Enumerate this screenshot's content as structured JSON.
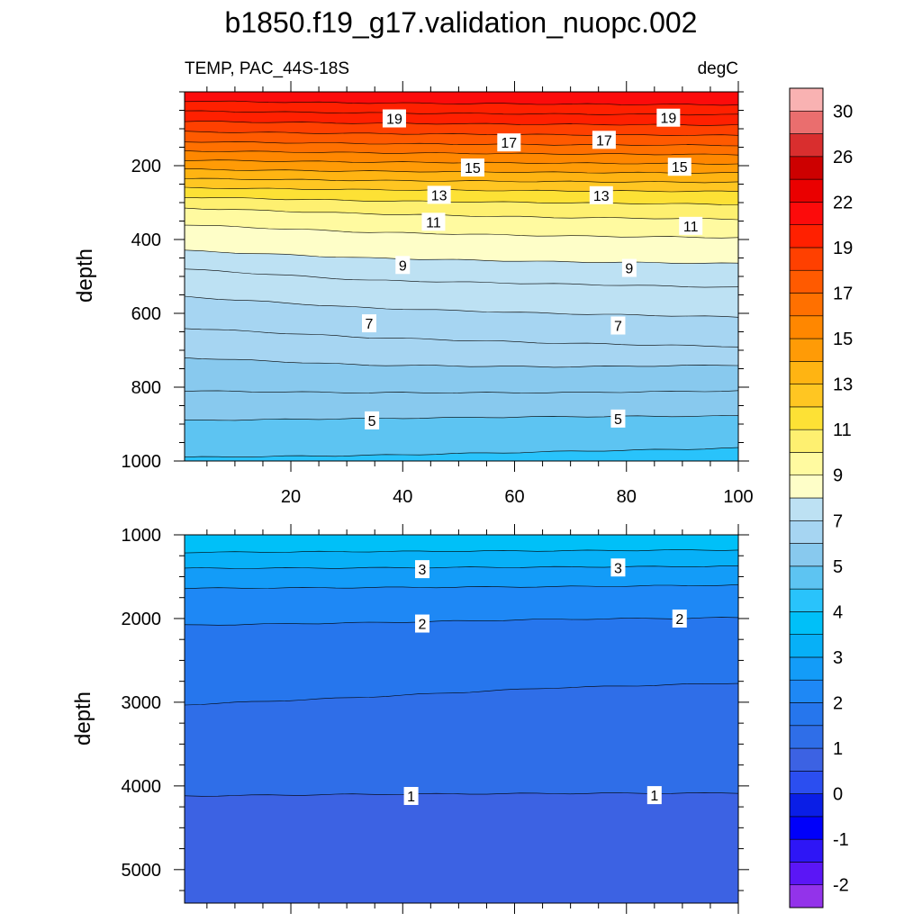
{
  "chart_data": {
    "type": "contour",
    "title": "b1850.f19_g17.validation_nuopc.002",
    "subtitle_left": "TEMP, PAC_44S-18S",
    "subtitle_right": "degC",
    "ylabel": "depth",
    "x_tick_labels": [
      "20",
      "40",
      "60",
      "80",
      "100"
    ],
    "x_ticks": [
      20,
      40,
      60,
      80,
      100
    ],
    "xlim": [
      1,
      100
    ],
    "panels": [
      {
        "name": "upper",
        "ylim": [
          0,
          1000
        ],
        "y_ticks": [
          200,
          400,
          600,
          800,
          1000
        ],
        "y_tick_labels": [
          "200",
          "400",
          "600",
          "800",
          "1000"
        ],
        "contours": [
          {
            "level": 21,
            "depths": [
              25,
              30,
              33,
              35
            ]
          },
          {
            "level": 20,
            "depths": [
              52,
              57,
              60,
              62
            ]
          },
          {
            "level": 19,
            "depths": [
              80,
              85,
              88,
              90
            ]
          },
          {
            "level": 18,
            "depths": [
              108,
              113,
              116,
              118
            ]
          },
          {
            "level": 17,
            "depths": [
              135,
              140,
              143,
              145
            ]
          },
          {
            "level": 16,
            "depths": [
              160,
              165,
              168,
              170
            ]
          },
          {
            "level": 15,
            "depths": [
              185,
              190,
              193,
              195
            ]
          },
          {
            "level": 14,
            "depths": [
              210,
              215,
              218,
              220
            ]
          },
          {
            "level": 13,
            "depths": [
              235,
              240,
              243,
              245
            ]
          },
          {
            "level": 12,
            "depths": [
              260,
              265,
              268,
              270
            ]
          },
          {
            "level": 11,
            "depths": [
              285,
              295,
              300,
              305
            ]
          },
          {
            "level": 10,
            "depths": [
              315,
              330,
              340,
              345
            ]
          },
          {
            "level": 9,
            "depths": [
              360,
              380,
              390,
              395
            ]
          },
          {
            "level": 8,
            "depths": [
              430,
              450,
              460,
              465
            ]
          },
          {
            "level": 7.5,
            "depths": [
              480,
              510,
              520,
              530
            ]
          },
          {
            "level": 7,
            "depths": [
              555,
              585,
              600,
              610
            ]
          },
          {
            "level": 6.5,
            "depths": [
              640,
              665,
              680,
              690
            ]
          },
          {
            "level": 6,
            "depths": [
              720,
              740,
              745,
              740
            ]
          },
          {
            "level": 5.5,
            "depths": [
              810,
              815,
              815,
              810
            ]
          },
          {
            "level": 5,
            "depths": [
              890,
              885,
              880,
              878
            ]
          },
          {
            "level": 4.5,
            "depths": [
              990,
              985,
              975,
              965
            ]
          }
        ],
        "labels": [
          {
            "text": "19",
            "x": 38.5,
            "y": 72
          },
          {
            "text": "19",
            "x": 87.5,
            "y": 70
          },
          {
            "text": "17",
            "x": 59,
            "y": 137
          },
          {
            "text": "17",
            "x": 76,
            "y": 130
          },
          {
            "text": "15",
            "x": 52.5,
            "y": 205
          },
          {
            "text": "15",
            "x": 89.5,
            "y": 203
          },
          {
            "text": "13",
            "x": 46.5,
            "y": 279
          },
          {
            "text": "13",
            "x": 75.5,
            "y": 280
          },
          {
            "text": "11",
            "x": 45.5,
            "y": 352
          },
          {
            "text": "11",
            "x": 91.5,
            "y": 363
          },
          {
            "text": "9",
            "x": 40,
            "y": 469
          },
          {
            "text": "9",
            "x": 80.5,
            "y": 477
          },
          {
            "text": "7",
            "x": 34,
            "y": 627
          },
          {
            "text": "7",
            "x": 78.5,
            "y": 633
          },
          {
            "text": "5",
            "x": 34.5,
            "y": 890
          },
          {
            "text": "5",
            "x": 78.5,
            "y": 885
          }
        ]
      },
      {
        "name": "lower",
        "ylim": [
          1000,
          5400
        ],
        "y_ticks": [
          1000,
          2000,
          3000,
          4000,
          5000
        ],
        "y_tick_labels": [
          "1000",
          "2000",
          "3000",
          "4000",
          "5000"
        ],
        "contours": [
          {
            "level": 3.5,
            "depths": [
              1210,
              1200,
              1190,
              1180
            ]
          },
          {
            "level": 3,
            "depths": [
              1400,
              1395,
              1385,
              1375
            ]
          },
          {
            "level": 2.5,
            "depths": [
              1640,
              1630,
              1620,
              1600
            ]
          },
          {
            "level": 2,
            "depths": [
              2080,
              2050,
              2010,
              1990
            ]
          },
          {
            "level": 1.5,
            "depths": [
              3030,
              2940,
              2830,
              2770
            ]
          },
          {
            "level": 1,
            "depths": [
              4120,
              4100,
              4090,
              4085
            ]
          }
        ],
        "labels": [
          {
            "text": "3",
            "x": 43.5,
            "y": 1410
          },
          {
            "text": "3",
            "x": 78.5,
            "y": 1390
          },
          {
            "text": "2",
            "x": 43.5,
            "y": 2060
          },
          {
            "text": "2",
            "x": 89.5,
            "y": 2000
          },
          {
            "text": "1",
            "x": 41.5,
            "y": 4120
          },
          {
            "text": "1",
            "x": 85,
            "y": 4110
          }
        ]
      }
    ],
    "colorbar": {
      "tick_labels": [
        "-2",
        "-1",
        "0",
        "1",
        "2",
        "3",
        "4",
        "5",
        "7",
        "9",
        "11",
        "13",
        "15",
        "17",
        "19",
        "22",
        "26",
        "30"
      ],
      "colors": [
        "#9333ea",
        "#5b16f6",
        "#2e16f6",
        "#0000fa",
        "#0a1ee6",
        "#2b4ef0",
        "#3c62e3",
        "#2f6ee8",
        "#2676ed",
        "#1e88f5",
        "#139cf8",
        "#07b0f7",
        "#00c0f8",
        "#29c3fb",
        "#5dc4f2",
        "#88c9ee",
        "#a6d5f2",
        "#bde1f3",
        "#fefec8",
        "#fffaa0",
        "#fef070",
        "#fde135",
        "#ffc622",
        "#ffb412",
        "#ff9b06",
        "#ff8700",
        "#ff7000",
        "#ff5a00",
        "#ff4000",
        "#ff2000",
        "#fc0b0b",
        "#ea0000",
        "#cd0000",
        "#d92e2e",
        "#ea6e6e",
        "#f9b2b2"
      ]
    }
  }
}
